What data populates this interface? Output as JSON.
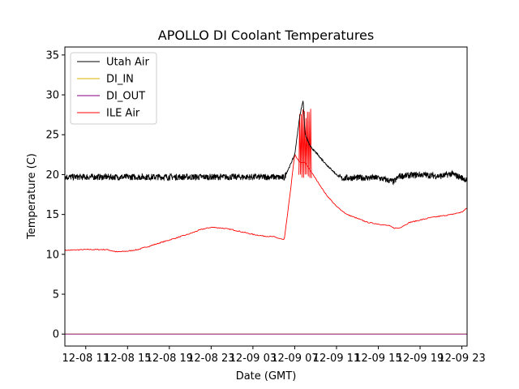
{
  "chart_data": {
    "type": "line",
    "title": "APOLLO DI Coolant Temperatures",
    "xlabel": "Date (GMT)",
    "ylabel": "Temperature (C)",
    "x_unit": "hours since 12-08 09:00 GMT",
    "xlim": [
      0,
      38.5
    ],
    "ylim": [
      -1.5,
      36
    ],
    "y_ticks": [
      0,
      5,
      10,
      15,
      20,
      25,
      30,
      35
    ],
    "x_ticks": [
      {
        "x": 2,
        "label": "12-08 11"
      },
      {
        "x": 6,
        "label": "12-08 15"
      },
      {
        "x": 10,
        "label": "12-08 19"
      },
      {
        "x": 14,
        "label": "12-08 23"
      },
      {
        "x": 18,
        "label": "12-09 03"
      },
      {
        "x": 22,
        "label": "12-09 07"
      },
      {
        "x": 26,
        "label": "12-09 11"
      },
      {
        "x": 30,
        "label": "12-09 15"
      },
      {
        "x": 34,
        "label": "12-09 19"
      },
      {
        "x": 38,
        "label": "12-09 23"
      }
    ],
    "legend_position": "upper-left",
    "series": [
      {
        "name": "Utah Air",
        "color": "#000000",
        "style": "noisy",
        "noise": 0.5,
        "x": [
          0,
          5,
          10,
          15,
          20,
          21,
          21.5,
          22,
          22.5,
          22.8,
          23,
          23.5,
          24,
          25,
          26,
          26.5,
          27,
          30,
          31.5,
          32,
          33,
          34,
          35,
          36,
          37,
          38,
          38.5
        ],
        "y": [
          19.7,
          19.7,
          19.7,
          19.7,
          19.7,
          19.6,
          21,
          22.5,
          27.5,
          29.3,
          25,
          23.5,
          22.8,
          21.3,
          20,
          19.5,
          19.6,
          19.6,
          19.1,
          19.8,
          19.9,
          20,
          19.9,
          19.8,
          20.1,
          19.6,
          19.3
        ]
      },
      {
        "name": "DI_IN",
        "color": "#ddb000",
        "style": "flat",
        "x": [
          0,
          38.5
        ],
        "y": [
          0,
          0
        ]
      },
      {
        "name": "DI_OUT",
        "color": "#800080",
        "style": "flat",
        "x": [
          0,
          38.5
        ],
        "y": [
          0,
          0
        ]
      },
      {
        "name": "ILE Air",
        "color": "#ff0000",
        "style": "line",
        "x": [
          0,
          2,
          4,
          5,
          6,
          7,
          8,
          10,
          12,
          13,
          14,
          15,
          16,
          17,
          18,
          19,
          20,
          20.5,
          21,
          21.5,
          22,
          22.5,
          23,
          23.5,
          24,
          25,
          26,
          27,
          28,
          29,
          30,
          31,
          31.5,
          32,
          33,
          34,
          35,
          36,
          37,
          38,
          38.5
        ],
        "y": [
          10.5,
          10.6,
          10.6,
          10.3,
          10.4,
          10.6,
          11.0,
          11.8,
          12.6,
          13.1,
          13.4,
          13.3,
          13.1,
          12.8,
          12.5,
          12.3,
          12.2,
          12.0,
          11.8,
          17,
          22.5,
          21.5,
          21.5,
          20.5,
          19.5,
          17.5,
          16.0,
          15.0,
          14.5,
          14.0,
          13.8,
          13.6,
          13.3,
          13.3,
          14.0,
          14.3,
          14.6,
          14.8,
          15.0,
          15.3,
          15.8
        ]
      }
    ],
    "spikes": {
      "series": "ILE Air",
      "color": "#ff0000",
      "x_start": 22.4,
      "x_end": 23.6,
      "low": 19.5,
      "high": 28.5
    }
  }
}
